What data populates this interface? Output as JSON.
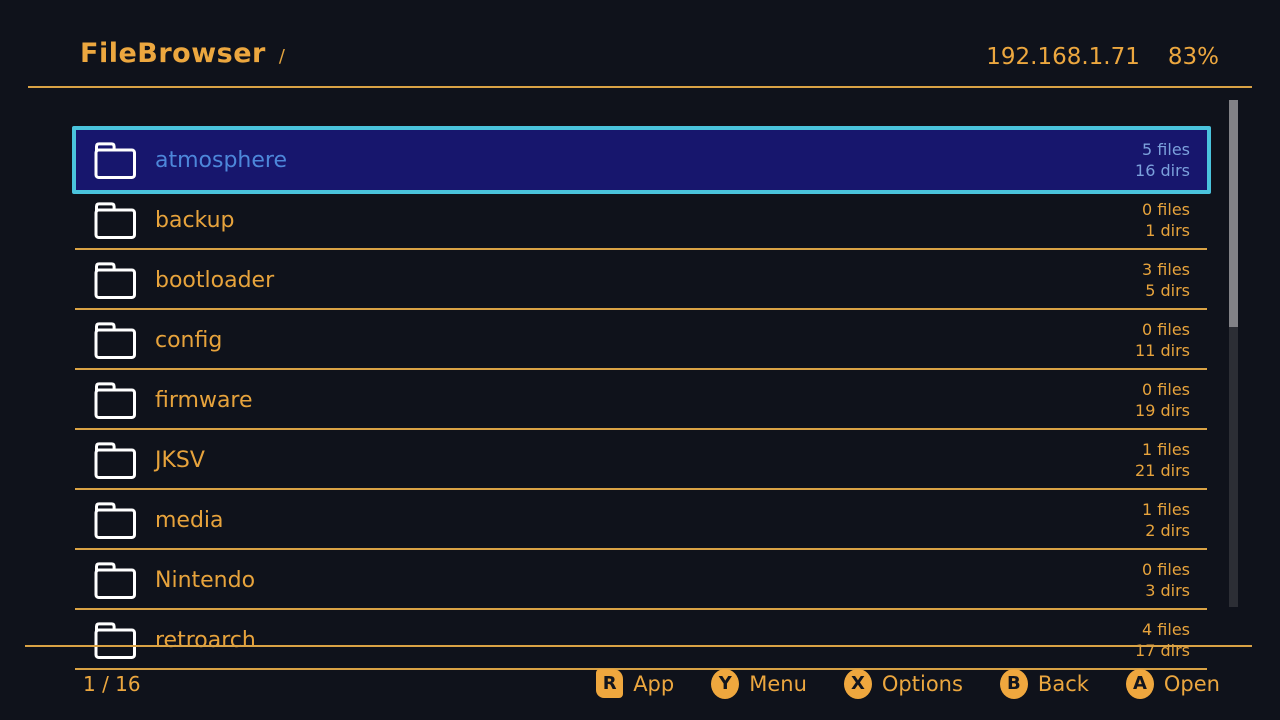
{
  "header": {
    "title": "FileBrowser",
    "path": "/",
    "ip": "192.168.1.71",
    "battery": "83%"
  },
  "list": {
    "items": [
      {
        "name": "atmosphere",
        "files": "5 files",
        "dirs": "16 dirs",
        "selected": true
      },
      {
        "name": "backup",
        "files": "0 files",
        "dirs": "1 dirs",
        "selected": false
      },
      {
        "name": "bootloader",
        "files": "3 files",
        "dirs": "5 dirs",
        "selected": false
      },
      {
        "name": "config",
        "files": "0 files",
        "dirs": "11 dirs",
        "selected": false
      },
      {
        "name": "firmware",
        "files": "0 files",
        "dirs": "19 dirs",
        "selected": false
      },
      {
        "name": "JKSV",
        "files": "1 files",
        "dirs": "21 dirs",
        "selected": false
      },
      {
        "name": "media",
        "files": "1 files",
        "dirs": "2 dirs",
        "selected": false
      },
      {
        "name": "Nintendo",
        "files": "0 files",
        "dirs": "3 dirs",
        "selected": false
      },
      {
        "name": "retroarch",
        "files": "4 files",
        "dirs": "17 dirs",
        "selected": false
      }
    ]
  },
  "footer": {
    "position": "1 / 16",
    "buttons": [
      {
        "key": "R",
        "label": "App",
        "shape": "shoulder"
      },
      {
        "key": "Y",
        "label": "Menu",
        "shape": "round"
      },
      {
        "key": "X",
        "label": "Options",
        "shape": "round"
      },
      {
        "key": "B",
        "label": "Back",
        "shape": "round"
      },
      {
        "key": "A",
        "label": "Open",
        "shape": "round"
      }
    ]
  },
  "colors": {
    "background": "#0f121b",
    "accent": "#eca73f",
    "separator": "#d9a245",
    "selected_bg": "#17166d",
    "selected_border": "#4ac3dd",
    "selected_text": "#4d87da",
    "scrollbar_thumb": "#828287",
    "folder_icon": "#ffffff"
  }
}
